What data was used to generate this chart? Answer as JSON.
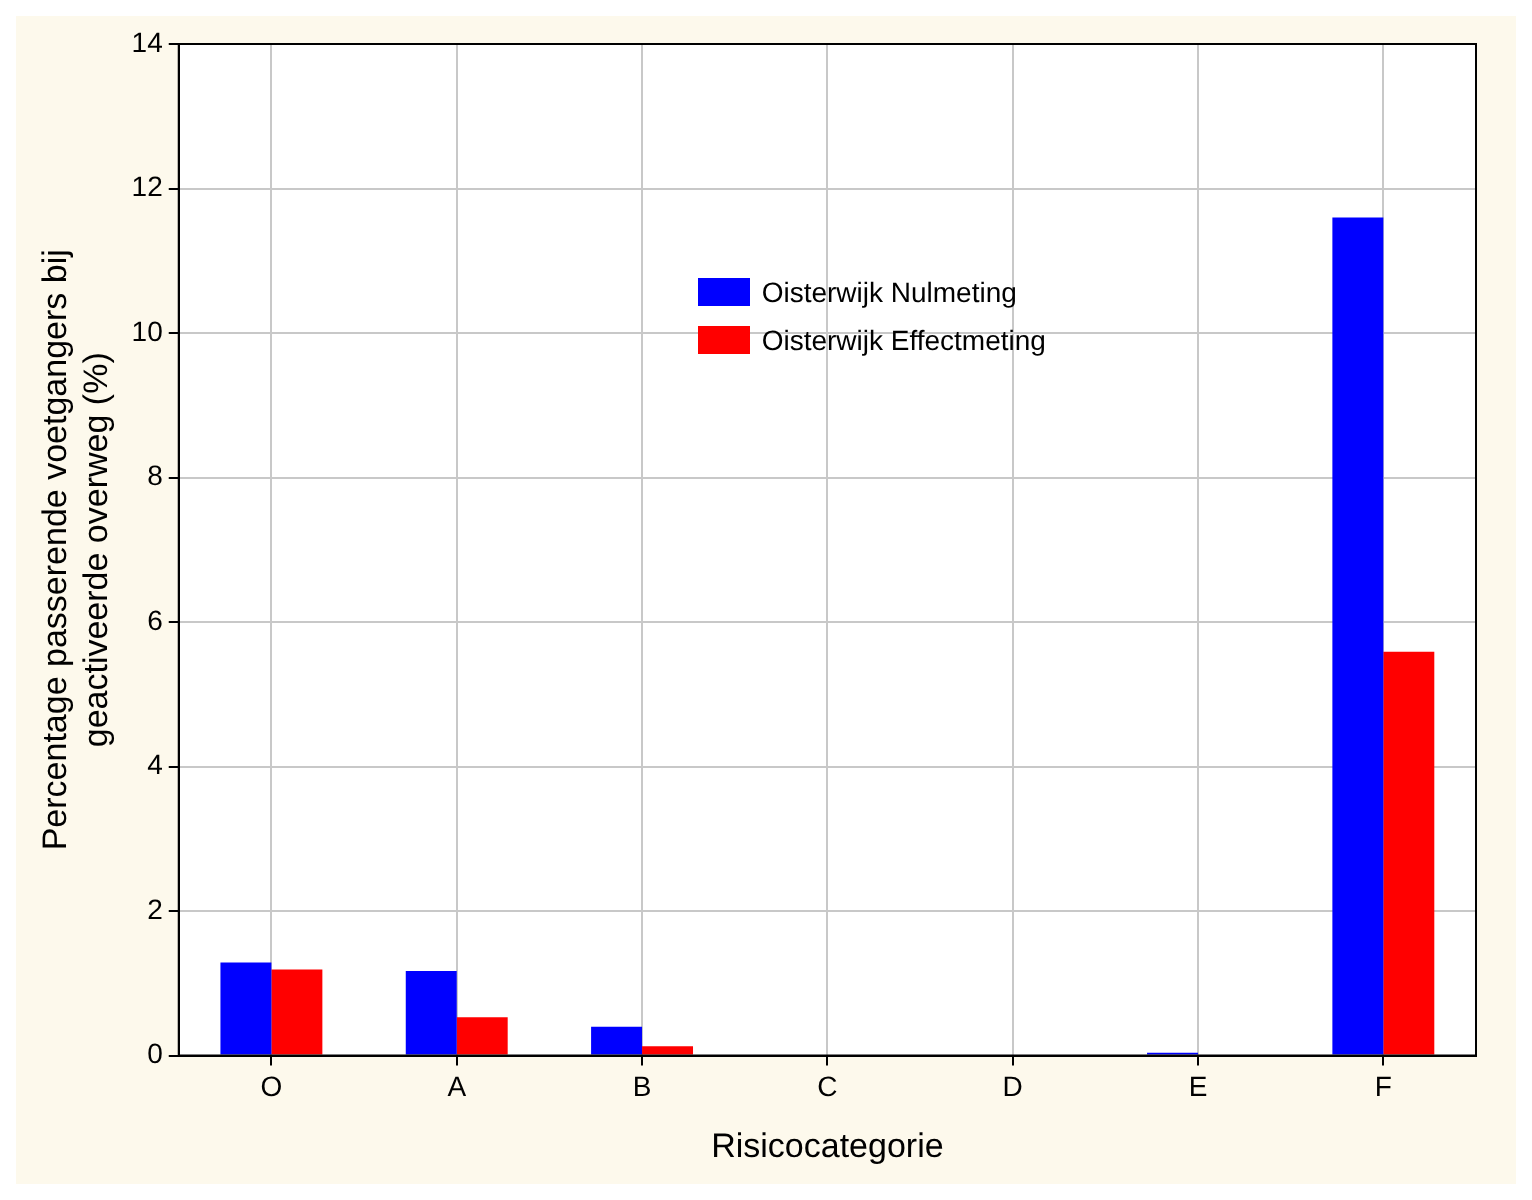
{
  "chart_data": {
    "type": "bar",
    "xlabel": "Risicocategorie",
    "ylabel": "Percentage passerende voetgangers bij\ngeactiveerde overweg (%)",
    "categories": [
      "O",
      "A",
      "B",
      "C",
      "D",
      "E",
      "F"
    ],
    "series": [
      {
        "name": "Oisterwijk Nulmeting",
        "color": "#0000ff",
        "values": [
          1.29,
          1.17,
          0.4,
          0,
          0,
          0.04,
          11.6
        ]
      },
      {
        "name": "Oisterwijk Effectmeting",
        "color": "#ff0000",
        "values": [
          1.19,
          0.53,
          0.13,
          0,
          0,
          0,
          5.59
        ]
      }
    ],
    "ylim": [
      0,
      14
    ],
    "yticks": [
      0,
      2,
      4,
      6,
      8,
      10,
      12,
      14
    ],
    "grid": true,
    "legend": "top"
  }
}
